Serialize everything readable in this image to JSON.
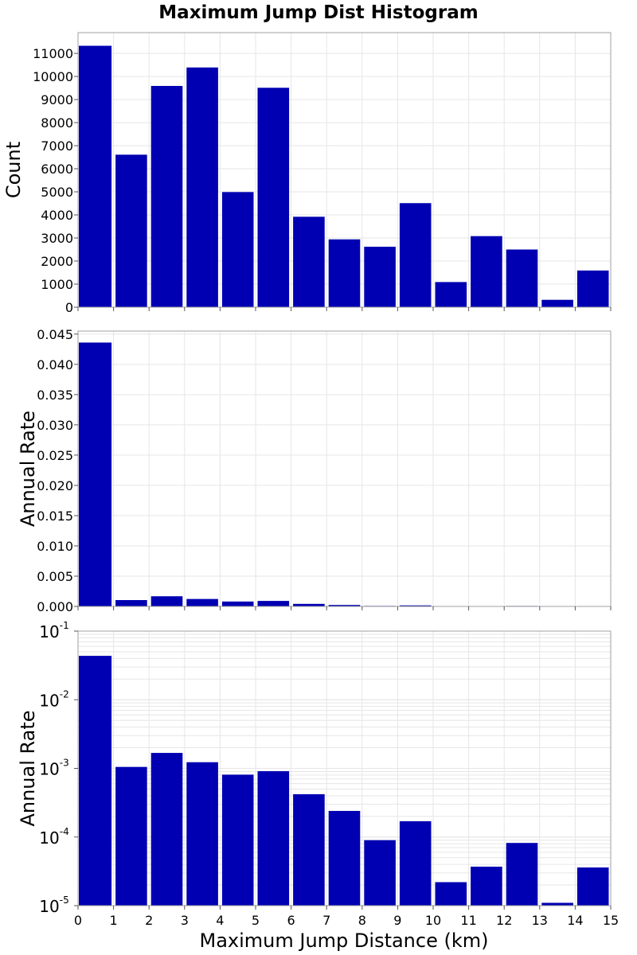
{
  "title": "Maximum Jump Dist Histogram",
  "xlabel": "Maximum Jump Distance (km)",
  "colors": {
    "bar": "#0000B2",
    "grid": "#E6E6E6",
    "frame": "#A0A0A0"
  },
  "chart_data": [
    {
      "type": "bar",
      "scale": "linear",
      "ylabel": "Count",
      "xlim": [
        0,
        15
      ],
      "ylim": [
        0,
        11900
      ],
      "grid": true,
      "x_ticks": [
        "0",
        "1",
        "2",
        "3",
        "4",
        "5",
        "6",
        "7",
        "8",
        "9",
        "10",
        "11",
        "12",
        "13",
        "14",
        "15"
      ],
      "y_ticks": [
        "0",
        "1000",
        "2000",
        "3000",
        "4000",
        "5000",
        "6000",
        "7000",
        "8000",
        "9000",
        "10000",
        "11000"
      ],
      "bin_starts": [
        0,
        1,
        2,
        3,
        4,
        5,
        6,
        7,
        8,
        9,
        10,
        11,
        12,
        13,
        14
      ],
      "bin_width": 1,
      "values": [
        11330,
        6610,
        9590,
        10390,
        4990,
        9510,
        3920,
        2940,
        2620,
        4510,
        1090,
        3080,
        2500,
        320,
        1590
      ]
    },
    {
      "type": "bar",
      "scale": "linear",
      "ylabel": "Annual Rate",
      "xlim": [
        0,
        15
      ],
      "ylim": [
        0,
        0.0455
      ],
      "grid": true,
      "y_ticks": [
        "0.000",
        "0.005",
        "0.010",
        "0.015",
        "0.020",
        "0.025",
        "0.030",
        "0.035",
        "0.040",
        "0.045"
      ],
      "bin_starts": [
        0,
        1,
        2,
        3,
        4,
        5,
        6,
        7,
        8,
        9,
        10,
        11,
        12,
        13,
        14
      ],
      "bin_width": 1,
      "values": [
        0.0436,
        0.00105,
        0.00168,
        0.00123,
        0.00081,
        0.00091,
        0.00042,
        0.00024,
        9e-05,
        0.00017,
        2.2e-05,
        3.7e-05,
        8.2e-05,
        1.1e-05,
        3.6e-05
      ]
    },
    {
      "type": "bar",
      "scale": "log",
      "ylabel": "Annual Rate",
      "xlim": [
        0,
        15
      ],
      "ylim": [
        1e-05,
        0.1
      ],
      "grid": true,
      "y_ticks": [
        {
          "base": "10",
          "exp": "-5"
        },
        {
          "base": "10",
          "exp": "-4"
        },
        {
          "base": "10",
          "exp": "-3"
        },
        {
          "base": "10",
          "exp": "-2"
        },
        {
          "base": "10",
          "exp": "-1"
        }
      ],
      "bin_starts": [
        0,
        1,
        2,
        3,
        4,
        5,
        6,
        7,
        8,
        9,
        10,
        11,
        12,
        13,
        14
      ],
      "bin_width": 1,
      "values": [
        0.0436,
        0.00105,
        0.00168,
        0.00123,
        0.00081,
        0.00091,
        0.00042,
        0.00024,
        9e-05,
        0.00017,
        2.2e-05,
        3.7e-05,
        8.2e-05,
        1.1e-05,
        3.6e-05
      ]
    }
  ]
}
